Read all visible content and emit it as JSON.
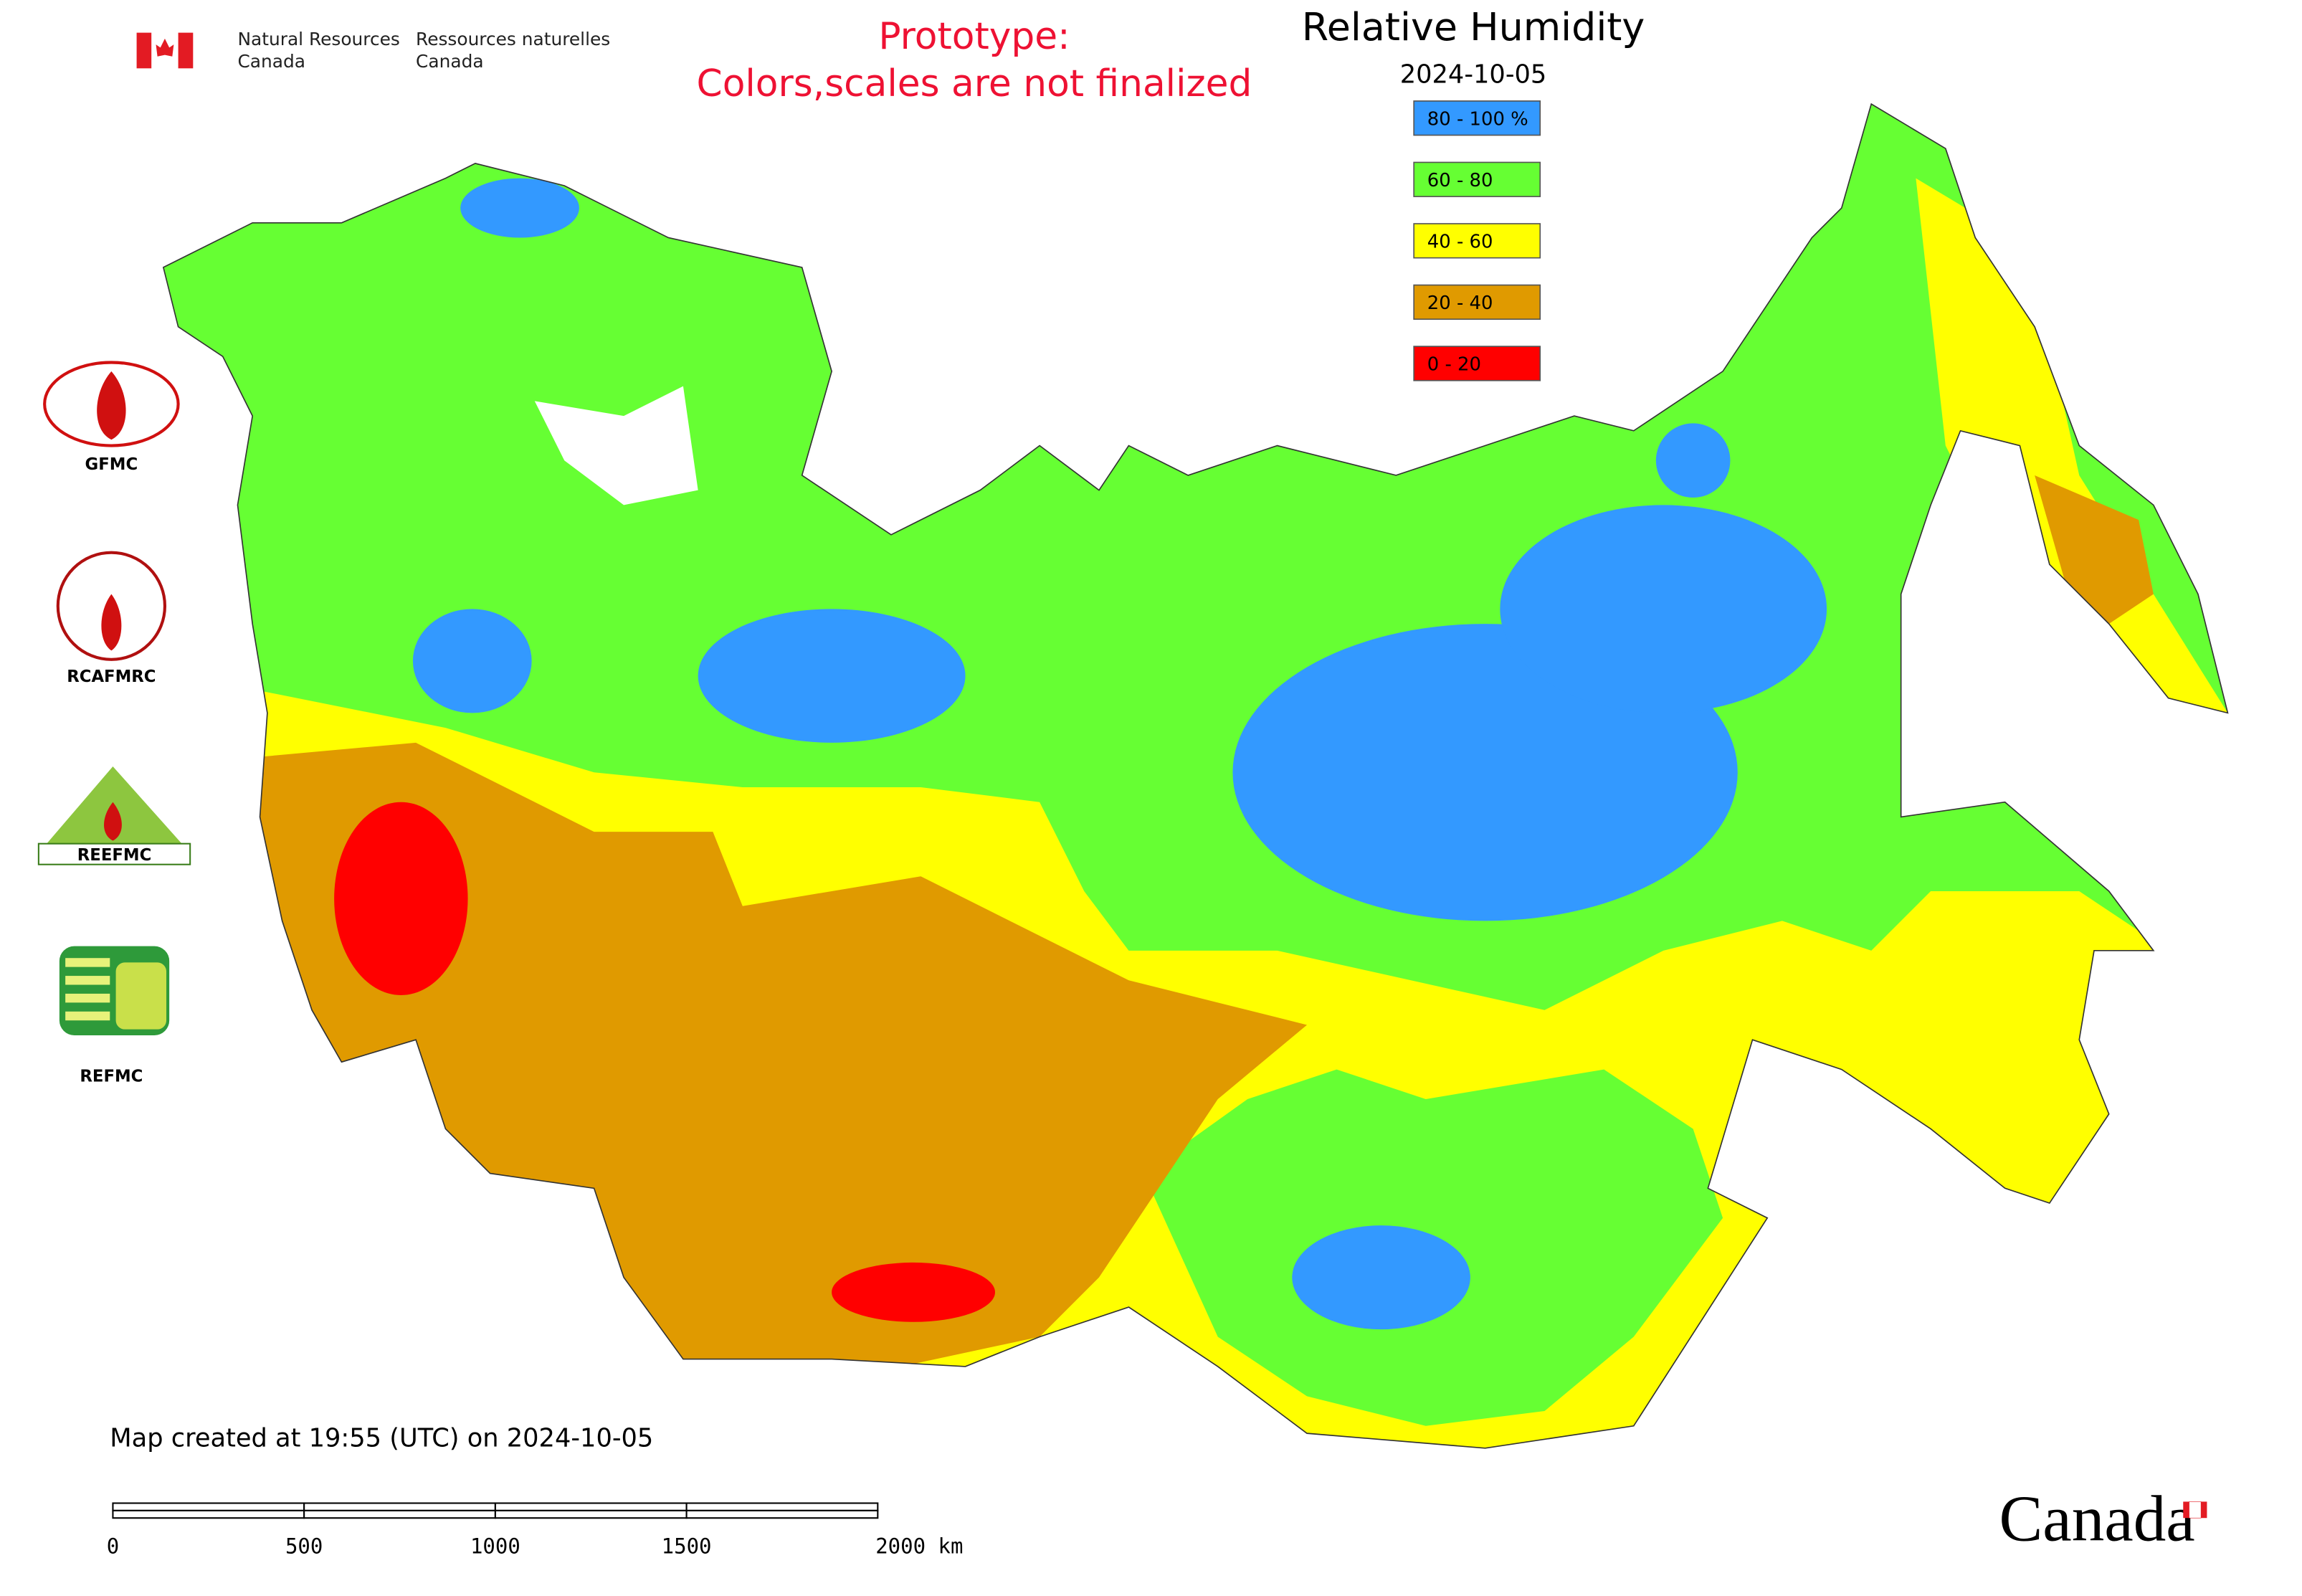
{
  "header": {
    "dept_en": [
      "Natural Resources",
      "Canada"
    ],
    "dept_fr": [
      "Ressources naturelles",
      "Canada"
    ]
  },
  "notice": [
    "Prototype:",
    "Colors,scales are not finalized"
  ],
  "title": "Relative Humidity",
  "date": "2024-10-05",
  "legend": [
    {
      "label": "80 - 100 %",
      "color": "#3399ff"
    },
    {
      "label": "60 - 80",
      "color": "#66ff33"
    },
    {
      "label": "40 - 60",
      "color": "#ffff00"
    },
    {
      "label": "20 - 40",
      "color": "#e09a00"
    },
    {
      "label": "0 - 20",
      "color": "#ff0000"
    }
  ],
  "logos": [
    "GFMC",
    "RCAFMRC",
    "REEFMC",
    "REFMC"
  ],
  "footer": "Map created at 19:55 (UTC) on 2024-10-05",
  "scale_bar": [
    "0",
    "500",
    "1000",
    "1500",
    "2000 km"
  ],
  "wordmark": "Canada"
}
